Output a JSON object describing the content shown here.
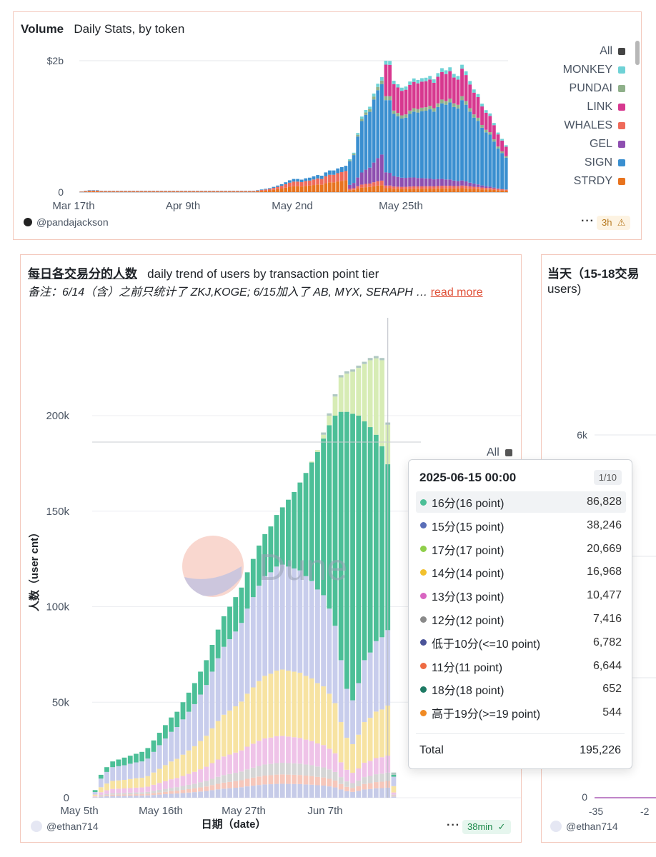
{
  "panel1": {
    "title_bold": "Volume",
    "title_sub": "Daily Stats, by token",
    "author": "@pandajackson",
    "age_badge": "3h",
    "warn_icon": "warning-triangle-icon",
    "menu_dots": "···",
    "legend": [
      {
        "label": "All",
        "color": "#444444"
      },
      {
        "label": "MONKEY",
        "color": "#6fd2d6"
      },
      {
        "label": "PUNDAI",
        "color": "#8fb08a"
      },
      {
        "label": "LINK",
        "color": "#d7388f"
      },
      {
        "label": "WHALES",
        "color": "#ef6a5a"
      },
      {
        "label": "GEL",
        "color": "#8e4fb0"
      },
      {
        "label": "SIGN",
        "color": "#3a8fd0"
      },
      {
        "label": "STRDY",
        "color": "#e8731e"
      }
    ]
  },
  "panel2": {
    "title_bold": "每日各交易分的人数",
    "title_sub": "daily trend of users by transaction point tier",
    "note": "备注：6/14（含）之前只统计了 ZKJ,KOGE; 6/15加入了 AB, MYX, SERAPH  …",
    "read_more": "read more",
    "legend_all": "All",
    "author": "@ethan714",
    "age_badge": "38min",
    "menu_dots": "···",
    "watermark_text": "Dune"
  },
  "panel3": {
    "title_line1": "当天（15-18交易",
    "title_line2": "users)",
    "author": "@ethan714",
    "y_tick_top": "6k",
    "y_tick_zero": "0",
    "x_ticks": [
      "-35",
      "-2"
    ]
  },
  "tooltip": {
    "date": "2025-06-15 00:00",
    "page": "1/10",
    "rows": [
      {
        "label": "16分(16 point)",
        "value": "86,828",
        "color": "#4cbf97"
      },
      {
        "label": "15分(15 point)",
        "value": "38,246",
        "color": "#5a6eb8"
      },
      {
        "label": "17分(17 point)",
        "value": "20,669",
        "color": "#8fcf4a"
      },
      {
        "label": "14分(14 point)",
        "value": "16,968",
        "color": "#f2c12e"
      },
      {
        "label": "13分(13 point)",
        "value": "10,477",
        "color": "#d865c1"
      },
      {
        "label": "12分(12 point)",
        "value": "7,416",
        "color": "#8a8a8a"
      },
      {
        "label": "低于10分(<=10 point)",
        "value": "6,782",
        "color": "#4b5499"
      },
      {
        "label": "11分(11 point)",
        "value": "6,644",
        "color": "#ee6a42"
      },
      {
        "label": "18分(18 point)",
        "value": "652",
        "color": "#1e7a64"
      },
      {
        "label": "高于19分(>=19 point)",
        "value": "544",
        "color": "#f08a24"
      }
    ],
    "total_label": "Total",
    "total_value": "195,226"
  },
  "chart_data": [
    {
      "type": "bar",
      "stacked": true,
      "title": "Volume",
      "subtitle": "Daily Stats, by token",
      "x_ticks": [
        "Mar 17th",
        "Apr 9th",
        "May 2nd",
        "May 25th"
      ],
      "y_ticks": [
        "$2b",
        "0"
      ],
      "ylim": [
        0,
        2000000000
      ],
      "series": [
        {
          "name": "STRDY",
          "color": "#e8731e"
        },
        {
          "name": "SIGN",
          "color": "#3a8fd0"
        },
        {
          "name": "GEL",
          "color": "#8e4fb0"
        },
        {
          "name": "WHALES",
          "color": "#ef6a5a"
        },
        {
          "name": "LINK",
          "color": "#d7388f"
        },
        {
          "name": "PUNDAI",
          "color": "#8fb08a"
        },
        {
          "name": "MONKEY",
          "color": "#6fd2d6"
        }
      ],
      "daily_totals_approx": [
        0.01,
        0.02,
        0.03,
        0.03,
        0.03,
        0.02,
        0.02,
        0.02,
        0.02,
        0.02,
        0.02,
        0.02,
        0.02,
        0.02,
        0.02,
        0.02,
        0.02,
        0.02,
        0.02,
        0.02,
        0.02,
        0.02,
        0.02,
        0.02,
        0.02,
        0.02,
        0.02,
        0.02,
        0.02,
        0.02,
        0.02,
        0.02,
        0.02,
        0.02,
        0.02,
        0.02,
        0.02,
        0.02,
        0.02,
        0.02,
        0.02,
        0.02,
        0.02,
        0.02,
        0.03,
        0.04,
        0.05,
        0.06,
        0.08,
        0.1,
        0.12,
        0.15,
        0.18,
        0.2,
        0.2,
        0.19,
        0.21,
        0.22,
        0.24,
        0.26,
        0.25,
        0.3,
        0.33,
        0.33,
        0.36,
        0.38,
        0.4,
        0.5,
        0.6,
        0.9,
        1.15,
        1.25,
        1.3,
        1.5,
        1.65,
        1.75,
        2.0,
        2.0,
        1.7,
        1.65,
        1.6,
        1.62,
        1.7,
        1.75,
        1.73,
        1.76,
        1.77,
        1.8,
        1.75,
        1.85,
        1.93,
        1.9,
        1.95,
        1.85,
        1.82,
        2.0,
        1.9,
        1.75,
        1.62,
        1.55,
        1.4,
        1.3,
        1.25,
        1.1,
        0.95,
        0.85,
        0.75
      ]
    },
    {
      "type": "bar",
      "stacked": true,
      "title": "每日各交易分的人数",
      "subtitle": "daily trend of users by transaction point tier",
      "xlabel": "日期（date）",
      "ylabel": "人数（user cnt）",
      "x_ticks": [
        "May 5th",
        "May 16th",
        "May 27th",
        "Jun 7th"
      ],
      "y_ticks": [
        "0",
        "50k",
        "100k",
        "150k",
        "200k"
      ],
      "ylim": [
        0,
        240000
      ],
      "highlighted_date": "2025-06-15",
      "series": [
        {
          "name": "低于10分(<=10 point)",
          "color": "#c6cbe8"
        },
        {
          "name": "11分(11 point)",
          "color": "#f6c7bb"
        },
        {
          "name": "12分(12 point)",
          "color": "#d6d6d6"
        },
        {
          "name": "13分(13 point)",
          "color": "#efc3e8"
        },
        {
          "name": "14分(14 point)",
          "color": "#f7e3a2"
        },
        {
          "name": "15分(15 point)",
          "color": "#c8cdec"
        },
        {
          "name": "16分(16 point)",
          "color": "#4cbf97"
        },
        {
          "name": "17分(17 point)",
          "color": "#d7ecb5"
        },
        {
          "name": "18分(18 point)",
          "color": "#b0c8c2"
        },
        {
          "name": "高于19分(>=19 point)",
          "color": "#f5c79d"
        }
      ],
      "daily_totals_approx": [
        4000,
        12000,
        16000,
        19000,
        20000,
        21000,
        22000,
        23000,
        24000,
        26000,
        30000,
        34000,
        38000,
        42000,
        45000,
        50000,
        55000,
        60000,
        66000,
        72000,
        80000,
        88000,
        95000,
        100000,
        105000,
        110000,
        118000,
        125000,
        132000,
        138000,
        142000,
        148000,
        152000,
        156000,
        160000,
        165000,
        170000,
        176000,
        182000,
        190000,
        200000,
        210000,
        220000,
        222000,
        223000,
        225000,
        227000,
        229000,
        230000,
        229000,
        195226,
        12000
      ],
      "tier16_approx": [
        1000,
        2000,
        2500,
        3000,
        3500,
        4000,
        4200,
        4500,
        5000,
        5500,
        6000,
        6500,
        7000,
        7500,
        8000,
        9000,
        10000,
        11000,
        12000,
        13000,
        14000,
        15000,
        16000,
        17000,
        18000,
        18500,
        19000,
        20000,
        21000,
        22000,
        24000,
        27000,
        30000,
        35000,
        40000,
        46000,
        54000,
        62000,
        72000,
        82000,
        96000,
        110000,
        130000,
        145000,
        150000,
        140000,
        125000,
        118000,
        108000,
        100000,
        86828,
        1000
      ],
      "tier17_approx": [
        0,
        0,
        0,
        0,
        0,
        0,
        0,
        0,
        0,
        0,
        0,
        0,
        0,
        0,
        0,
        0,
        0,
        0,
        0,
        0,
        0,
        0,
        0,
        0,
        0,
        0,
        0,
        0,
        0,
        0,
        0,
        0,
        0,
        0,
        0,
        0,
        0,
        500,
        1000,
        2000,
        5000,
        10000,
        18000,
        20000,
        22000,
        25000,
        30000,
        35000,
        40000,
        45000,
        20669,
        0
      ]
    }
  ]
}
